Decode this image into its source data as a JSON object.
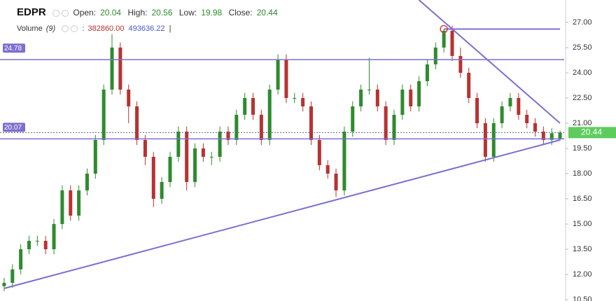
{
  "chart_data": {
    "type": "candlestick",
    "title": "EDPR",
    "field_labels": {
      "open": "Open:",
      "high": "High:",
      "low": "Low:",
      "close": "Close:"
    },
    "volume": {
      "label": "Volume",
      "period": "(9)",
      "prefix": ":",
      "values": [
        382860,
        493636.22
      ],
      "value_labels": [
        "382860.00",
        "493636.22"
      ],
      "suffix": "|"
    },
    "open": [
      11.3,
      11.5,
      12.3,
      13.5,
      14.0,
      14.0,
      13.5,
      15.0,
      17.0,
      15.5,
      17.0,
      18.0,
      20.0,
      23.0,
      25.5,
      23.0,
      22.0,
      20.0,
      19.0,
      16.5,
      17.5,
      19.0,
      20.5,
      17.5,
      19.5,
      19.0,
      19.0,
      20.5,
      20.0,
      21.5,
      22.5,
      21.5,
      20.0,
      23.0,
      24.8,
      22.5,
      22.5,
      22.0,
      20.0,
      18.5,
      18.0,
      17.0,
      20.5,
      22.0,
      23.0,
      23.0,
      22.0,
      20.0,
      21.5,
      23.0,
      22.0,
      23.5,
      24.5,
      25.5,
      26.5,
      25.0,
      24.0,
      22.5,
      21.0,
      19.0,
      21.0,
      22.0,
      22.5,
      21.5,
      21.0,
      20.5,
      20.0,
      20.04
    ],
    "high": [
      11.8,
      12.6,
      13.8,
      14.3,
      14.3,
      14.3,
      15.3,
      17.3,
      17.3,
      17.3,
      18.3,
      20.3,
      23.3,
      26.3,
      25.8,
      23.3,
      22.3,
      20.3,
      19.3,
      17.8,
      19.3,
      20.8,
      20.8,
      19.8,
      19.8,
      19.3,
      20.8,
      20.8,
      21.8,
      22.8,
      22.8,
      21.8,
      23.3,
      25.1,
      25.1,
      22.8,
      22.8,
      22.3,
      20.3,
      18.8,
      18.3,
      20.8,
      22.3,
      23.3,
      24.9,
      23.3,
      22.3,
      21.8,
      23.3,
      23.3,
      23.8,
      24.8,
      25.8,
      26.6,
      26.8,
      25.5,
      24.3,
      22.8,
      21.3,
      21.3,
      22.3,
      22.8,
      22.8,
      21.8,
      21.3,
      20.8,
      20.7,
      20.56
    ],
    "low": [
      11.0,
      11.2,
      12.0,
      13.2,
      13.7,
      13.2,
      13.2,
      14.7,
      15.2,
      15.2,
      16.7,
      17.7,
      19.7,
      22.7,
      22.7,
      21.0,
      19.7,
      18.5,
      16.0,
      16.2,
      17.2,
      18.7,
      17.0,
      17.2,
      18.7,
      18.5,
      18.7,
      19.7,
      19.7,
      21.2,
      21.2,
      19.7,
      19.7,
      22.7,
      22.2,
      22.2,
      21.7,
      19.7,
      18.2,
      17.7,
      16.6,
      16.7,
      20.2,
      21.7,
      22.7,
      21.7,
      19.7,
      19.7,
      21.2,
      21.7,
      21.7,
      23.2,
      24.2,
      25.2,
      24.7,
      23.7,
      22.2,
      20.7,
      18.7,
      18.7,
      20.7,
      21.7,
      21.2,
      20.7,
      20.2,
      19.7,
      19.7,
      19.98
    ],
    "close": [
      11.5,
      12.3,
      13.5,
      14.0,
      14.0,
      13.5,
      15.0,
      17.0,
      15.5,
      17.0,
      18.0,
      20.0,
      23.0,
      25.5,
      23.0,
      22.0,
      20.0,
      19.0,
      16.5,
      17.5,
      19.0,
      20.5,
      17.5,
      19.5,
      19.0,
      19.0,
      20.5,
      20.0,
      21.5,
      22.5,
      21.5,
      20.0,
      23.0,
      24.8,
      22.5,
      22.5,
      22.0,
      20.0,
      18.5,
      18.0,
      17.0,
      20.5,
      22.0,
      23.0,
      23.0,
      22.0,
      20.0,
      21.5,
      23.0,
      22.0,
      23.5,
      24.5,
      25.5,
      26.5,
      25.0,
      24.0,
      22.5,
      21.0,
      19.0,
      21.0,
      22.0,
      22.5,
      21.5,
      21.0,
      20.5,
      20.0,
      20.4,
      20.44
    ],
    "up_color": "#2e8b2e",
    "down_color": "#b83232",
    "ylim": [
      10.42,
      28.33
    ],
    "yticks": [
      {
        "value": 10.5,
        "label": "10.50"
      },
      {
        "value": 12,
        "label": "12.00"
      },
      {
        "value": 13.5,
        "label": "13.50"
      },
      {
        "value": 15,
        "label": "15.00"
      },
      {
        "value": 16.5,
        "label": "16.50"
      },
      {
        "value": 18,
        "label": "18.00"
      },
      {
        "value": 19.5,
        "label": "19.50"
      },
      {
        "value": 21,
        "label": "21.00"
      },
      {
        "value": 22.5,
        "label": "22.50"
      },
      {
        "value": 24,
        "label": "24.00"
      },
      {
        "value": 25.5,
        "label": "25.50"
      },
      {
        "value": 27,
        "label": "27.00"
      }
    ],
    "horizontal_lines": [
      24.78,
      20.07
    ],
    "trend_lines": [
      {
        "x": [
          0,
          67
        ],
        "y": [
          11.17,
          20.0
        ]
      },
      {
        "x": [
          50,
          67
        ],
        "y": [
          28.33,
          21.0
        ]
      },
      {
        "x": [
          53,
          67
        ],
        "y": [
          26.6,
          26.6
        ]
      }
    ],
    "marker": {
      "x": 53,
      "y": 26.6
    },
    "drawing_color": "#7b6fd0",
    "last_price_color": "#5ccd5c"
  }
}
